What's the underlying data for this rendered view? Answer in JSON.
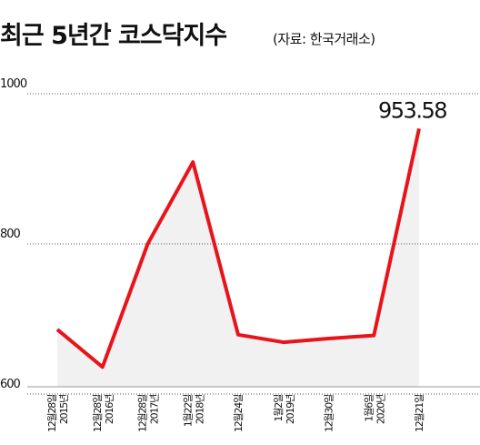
{
  "chart_data": {
    "type": "line",
    "title": "최근 5년간 코스닥지수",
    "subtitle": "(자료: 한국거래소)",
    "categories": [
      "12월28일\n2015년",
      "12월28일\n2016년",
      "12월28일\n2017년",
      "1월22일\n2018년",
      "12월24일",
      "1월2일\n2019년",
      "12월30일",
      "1월6일\n2020년",
      "12월21일"
    ],
    "values": [
      686,
      636,
      800,
      909,
      679,
      669,
      674,
      678,
      953.58
    ],
    "value_labels": [
      null,
      null,
      null,
      null,
      null,
      null,
      null,
      null,
      "953.58"
    ],
    "color": "#e8141b",
    "area_color": "#f1f1f1",
    "ylim": [
      600,
      1000
    ],
    "yticks": [
      600,
      800,
      1000
    ],
    "grid": true
  }
}
